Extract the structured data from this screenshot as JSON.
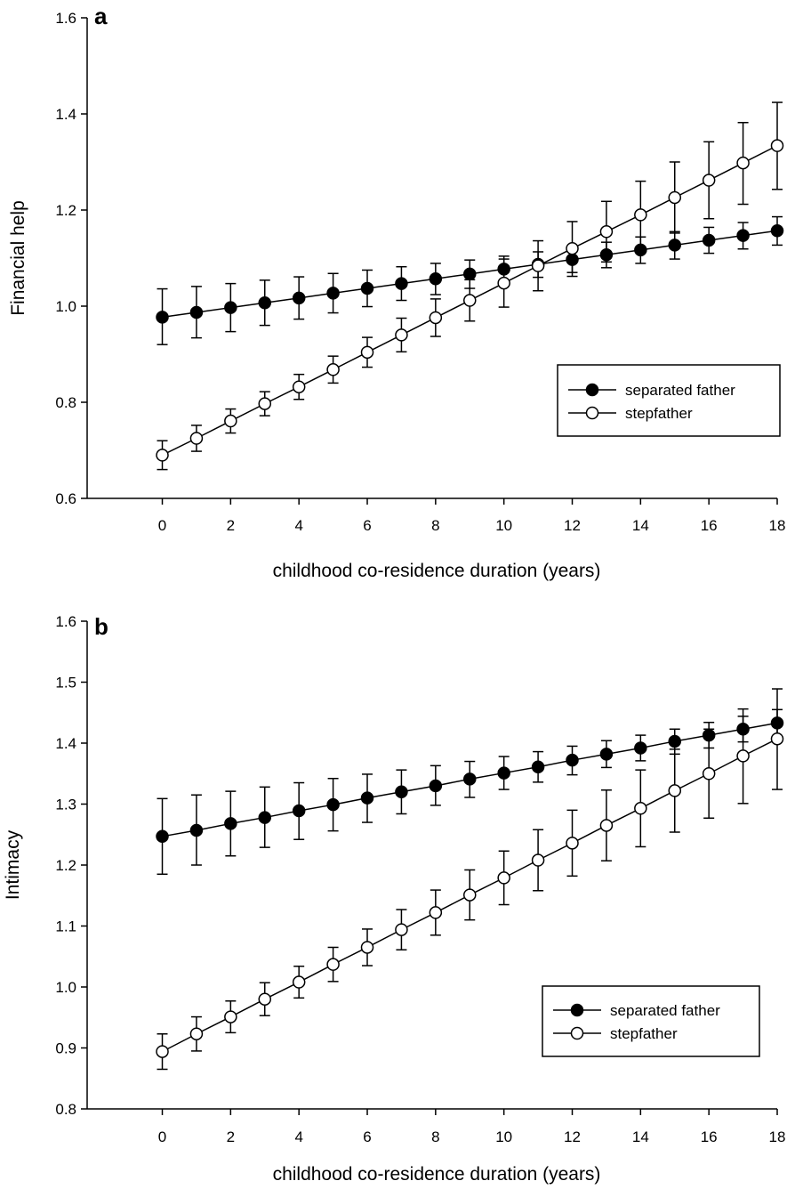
{
  "chart_data": [
    {
      "type": "line",
      "panel_label": "a",
      "xlabel": "childhood co-residence duration (years)",
      "ylabel": "Financial help",
      "xlim": [
        -2.2,
        18
      ],
      "ylim": [
        0.6,
        1.6
      ],
      "x_ticks": [
        0,
        2,
        4,
        6,
        8,
        10,
        12,
        14,
        16,
        18
      ],
      "y_ticks": [
        0.6,
        0.8,
        1.0,
        1.2,
        1.4,
        1.6
      ],
      "y_tick_labels": [
        "0.6",
        "0.8",
        "1.0",
        "1.2",
        "1.4",
        "1.6"
      ],
      "grid": false,
      "legend_position": "lower-right",
      "x": [
        0,
        1,
        2,
        3,
        4,
        5,
        6,
        7,
        8,
        9,
        10,
        11,
        12,
        13,
        14,
        15,
        16,
        17,
        18
      ],
      "series": [
        {
          "name": "separated father",
          "marker": "filled-circle",
          "values": [
            0.977,
            0.987,
            0.997,
            1.007,
            1.017,
            1.027,
            1.037,
            1.047,
            1.057,
            1.067,
            1.077,
            1.087,
            1.097,
            1.107,
            1.117,
            1.127,
            1.137,
            1.147,
            1.157
          ],
          "err_low": [
            0.92,
            0.934,
            0.947,
            0.96,
            0.973,
            0.986,
            0.999,
            1.012,
            1.024,
            1.037,
            1.049,
            1.06,
            1.07,
            1.08,
            1.089,
            1.098,
            1.11,
            1.119,
            1.127
          ],
          "err_high": [
            1.036,
            1.041,
            1.047,
            1.054,
            1.061,
            1.068,
            1.075,
            1.082,
            1.089,
            1.096,
            1.104,
            1.113,
            1.123,
            1.133,
            1.144,
            1.155,
            1.164,
            1.174,
            1.186
          ]
        },
        {
          "name": "stepfather",
          "marker": "open-circle",
          "values": [
            0.69,
            0.725,
            0.761,
            0.797,
            0.832,
            0.868,
            0.904,
            0.94,
            0.976,
            1.012,
            1.048,
            1.084,
            1.12,
            1.155,
            1.19,
            1.226,
            1.262,
            1.298,
            1.334
          ],
          "err_low": [
            0.66,
            0.698,
            0.736,
            0.772,
            0.806,
            0.84,
            0.873,
            0.905,
            0.937,
            0.969,
            0.998,
            1.032,
            1.062,
            1.092,
            1.12,
            1.152,
            1.182,
            1.212,
            1.243
          ],
          "err_high": [
            0.72,
            0.752,
            0.786,
            0.822,
            0.858,
            0.896,
            0.935,
            0.975,
            1.015,
            1.055,
            1.098,
            1.136,
            1.176,
            1.218,
            1.26,
            1.3,
            1.342,
            1.382,
            1.424
          ]
        }
      ]
    },
    {
      "type": "line",
      "panel_label": "b",
      "xlabel": "childhood co-residence duration (years)",
      "ylabel": "Intimacy",
      "xlim": [
        -2.2,
        18
      ],
      "ylim": [
        0.8,
        1.6
      ],
      "x_ticks": [
        0,
        2,
        4,
        6,
        8,
        10,
        12,
        14,
        16,
        18
      ],
      "y_ticks": [
        0.8,
        0.9,
        1.0,
        1.1,
        1.2,
        1.3,
        1.4,
        1.5,
        1.6
      ],
      "y_tick_labels": [
        "0.8",
        "0.9",
        "1.0",
        "1.1",
        "1.2",
        "1.3",
        "1.4",
        "1.5",
        "1.6"
      ],
      "grid": false,
      "legend_position": "lower-right",
      "x": [
        0,
        1,
        2,
        3,
        4,
        5,
        6,
        7,
        8,
        9,
        10,
        11,
        12,
        13,
        14,
        15,
        16,
        17,
        18
      ],
      "series": [
        {
          "name": "separated father",
          "marker": "filled-circle",
          "values": [
            1.247,
            1.257,
            1.268,
            1.278,
            1.289,
            1.299,
            1.31,
            1.32,
            1.33,
            1.341,
            1.351,
            1.361,
            1.372,
            1.382,
            1.392,
            1.403,
            1.413,
            1.423,
            1.433
          ],
          "err_low": [
            1.185,
            1.2,
            1.215,
            1.229,
            1.242,
            1.256,
            1.27,
            1.284,
            1.298,
            1.311,
            1.324,
            1.336,
            1.348,
            1.36,
            1.371,
            1.382,
            1.392,
            1.402,
            1.41
          ],
          "err_high": [
            1.309,
            1.315,
            1.321,
            1.328,
            1.335,
            1.342,
            1.349,
            1.356,
            1.363,
            1.37,
            1.378,
            1.386,
            1.395,
            1.404,
            1.413,
            1.423,
            1.434,
            1.444,
            1.455
          ]
        },
        {
          "name": "stepfather",
          "marker": "open-circle",
          "values": [
            0.894,
            0.923,
            0.951,
            0.98,
            1.008,
            1.037,
            1.065,
            1.094,
            1.122,
            1.151,
            1.179,
            1.208,
            1.236,
            1.265,
            1.293,
            1.322,
            1.35,
            1.379,
            1.407
          ],
          "err_low": [
            0.865,
            0.895,
            0.925,
            0.953,
            0.982,
            1.009,
            1.035,
            1.061,
            1.085,
            1.11,
            1.135,
            1.158,
            1.182,
            1.207,
            1.23,
            1.254,
            1.277,
            1.301,
            1.324
          ],
          "err_high": [
            0.923,
            0.951,
            0.977,
            1.007,
            1.034,
            1.065,
            1.095,
            1.127,
            1.159,
            1.192,
            1.223,
            1.258,
            1.29,
            1.323,
            1.356,
            1.39,
            1.423,
            1.456,
            1.489
          ]
        }
      ]
    }
  ]
}
